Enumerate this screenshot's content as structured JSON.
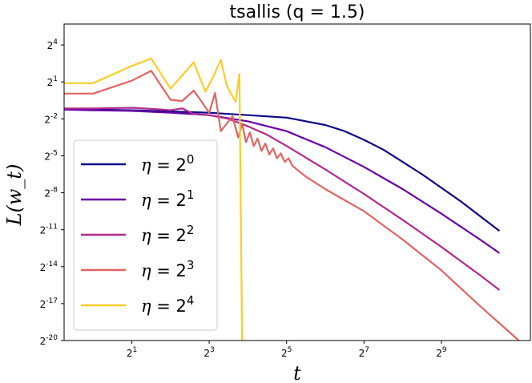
{
  "chart_data": {
    "type": "line",
    "title": "tsallis (q = 1.5)",
    "xlabel": "t",
    "ylabel": "L(w_t)",
    "x_scale": "log2",
    "y_scale": "log2",
    "xlim_log2": [
      -0.75,
      11.3
    ],
    "ylim_log2": [
      -20,
      5.7
    ],
    "x_ticks_log2": [
      1,
      3,
      5,
      7,
      9
    ],
    "y_ticks_log2": [
      4,
      1,
      -2,
      -5,
      -8,
      -11,
      -14,
      -17,
      -20
    ],
    "grid": false,
    "legend_position": "lower-left",
    "series": [
      {
        "name": "η = 2^0",
        "legend_base": "η = 2",
        "legend_exp": "0",
        "color": "#0d0887",
        "points_log2": [
          [
            -0.75,
            -1.2
          ],
          [
            0,
            -1.25
          ],
          [
            1,
            -1.3
          ],
          [
            2,
            -1.4
          ],
          [
            3,
            -1.5
          ],
          [
            4,
            -1.7
          ],
          [
            5,
            -1.9
          ],
          [
            6,
            -2.5
          ],
          [
            6.5,
            -3.0
          ],
          [
            7,
            -3.7
          ],
          [
            7.5,
            -4.5
          ],
          [
            8,
            -5.5
          ],
          [
            8.5,
            -6.5
          ],
          [
            9,
            -7.6
          ],
          [
            9.5,
            -8.7
          ],
          [
            10,
            -9.9
          ],
          [
            10.5,
            -11.1
          ]
        ]
      },
      {
        "name": "η = 2^1",
        "legend_base": "η = 2",
        "legend_exp": "1",
        "color": "#6a00a8",
        "points_log2": [
          [
            -0.75,
            -1.25
          ],
          [
            0,
            -1.3
          ],
          [
            1,
            -1.35
          ],
          [
            2,
            -1.5
          ],
          [
            3,
            -1.7
          ],
          [
            4,
            -2.2
          ],
          [
            5,
            -3.0
          ],
          [
            6,
            -4.3
          ],
          [
            7,
            -5.9
          ],
          [
            8,
            -7.7
          ],
          [
            9,
            -9.7
          ],
          [
            10,
            -11.8
          ],
          [
            10.5,
            -12.9
          ]
        ]
      },
      {
        "name": "η = 2^2",
        "legend_base": "η = 2",
        "legend_exp": "2",
        "color": "#b12a90",
        "points_log2": [
          [
            -0.75,
            -1.15
          ],
          [
            0,
            -1.15
          ],
          [
            1,
            -1.1
          ],
          [
            1.6,
            -1.2
          ],
          [
            2,
            -1.3
          ],
          [
            2.3,
            -1.15
          ],
          [
            2.6,
            -1.6
          ],
          [
            3,
            -1.7
          ],
          [
            3.5,
            -2.0
          ],
          [
            4,
            -2.6
          ],
          [
            4.5,
            -3.3
          ],
          [
            5,
            -4.2
          ],
          [
            6,
            -6.1
          ],
          [
            7,
            -8.1
          ],
          [
            8,
            -10.2
          ],
          [
            9,
            -12.4
          ],
          [
            10,
            -14.7
          ],
          [
            10.5,
            -15.9
          ]
        ]
      },
      {
        "name": "η = 2^3",
        "legend_base": "η = 2",
        "legend_exp": "3",
        "color": "#e16462",
        "points_log2": [
          [
            -0.75,
            0.05
          ],
          [
            0,
            0.05
          ],
          [
            1,
            1.1
          ],
          [
            1.5,
            1.9
          ],
          [
            2,
            -0.45
          ],
          [
            2.3,
            -0.55
          ],
          [
            2.6,
            0.3
          ],
          [
            2.8,
            -0.6
          ],
          [
            3.0,
            -1.5
          ],
          [
            3.15,
            0.1
          ],
          [
            3.3,
            -3.0
          ],
          [
            3.45,
            -2.4
          ],
          [
            3.6,
            -1.8
          ],
          [
            3.75,
            -3.5
          ],
          [
            3.85,
            -2.4
          ],
          [
            3.95,
            -3.9
          ],
          [
            4.05,
            -3.1
          ],
          [
            4.15,
            -4.2
          ],
          [
            4.25,
            -3.6
          ],
          [
            4.35,
            -4.6
          ],
          [
            4.45,
            -4.0
          ],
          [
            4.55,
            -4.9
          ],
          [
            4.65,
            -4.4
          ],
          [
            4.75,
            -5.2
          ],
          [
            4.85,
            -4.8
          ],
          [
            4.95,
            -5.5
          ],
          [
            5.05,
            -5.2
          ],
          [
            5.15,
            -5.8
          ],
          [
            5.3,
            -6.2
          ],
          [
            5.5,
            -6.7
          ],
          [
            6,
            -7.7
          ],
          [
            7,
            -9.5
          ],
          [
            8,
            -11.8
          ],
          [
            9,
            -14.3
          ],
          [
            10,
            -17.2
          ],
          [
            10.5,
            -18.6
          ],
          [
            11,
            -20.0
          ]
        ]
      },
      {
        "name": "η = 2^4",
        "legend_base": "η = 2",
        "legend_exp": "4",
        "color": "#fcce25",
        "points_log2": [
          [
            -0.75,
            0.9
          ],
          [
            0,
            0.9
          ],
          [
            1,
            2.3
          ],
          [
            1.5,
            2.9
          ],
          [
            2,
            0.45
          ],
          [
            2.6,
            2.6
          ],
          [
            2.9,
            0.2
          ],
          [
            3.1,
            1.4
          ],
          [
            3.3,
            2.8
          ],
          [
            3.45,
            0.75
          ],
          [
            3.55,
            0.1
          ],
          [
            3.68,
            -0.6
          ],
          [
            3.78,
            1.65
          ],
          [
            3.85,
            -20.0
          ]
        ]
      }
    ]
  }
}
